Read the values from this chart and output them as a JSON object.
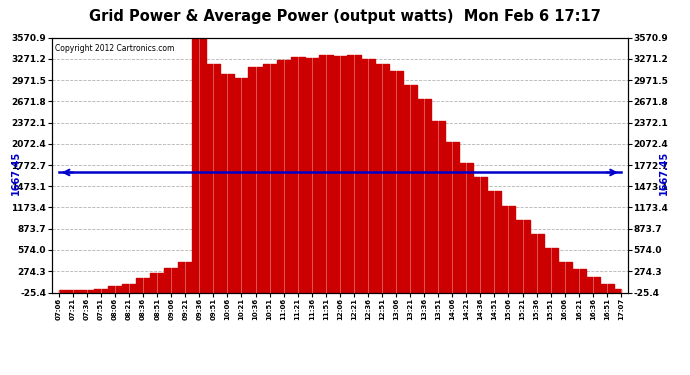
{
  "title": "Grid Power & Average Power (output watts)  Mon Feb 6 17:17",
  "copyright": "Copyright 2012 Cartronics.com",
  "avg_line_value": 1667.45,
  "y_ticks": [
    -25.4,
    274.3,
    574.0,
    873.7,
    1173.4,
    1473.1,
    1772.7,
    2072.4,
    2372.1,
    2671.8,
    2971.5,
    3271.2,
    3570.9
  ],
  "y_min": -25.4,
  "y_max": 3570.9,
  "background_color": "#ffffff",
  "plot_bg_color": "#ffffff",
  "bar_color": "#cc0000",
  "avg_line_color": "#0000cc",
  "grid_color": "#aaaaaa",
  "title_color": "#000000",
  "x_labels": [
    "07:06",
    "07:21",
    "07:36",
    "07:51",
    "08:06",
    "08:21",
    "08:36",
    "08:51",
    "09:06",
    "09:21",
    "09:36",
    "09:51",
    "10:06",
    "10:21",
    "10:36",
    "10:51",
    "11:06",
    "11:21",
    "11:36",
    "11:51",
    "12:06",
    "12:21",
    "12:36",
    "12:51",
    "13:06",
    "13:21",
    "13:36",
    "13:51",
    "14:06",
    "14:21",
    "14:36",
    "14:51",
    "15:06",
    "15:21",
    "15:36",
    "15:51",
    "16:06",
    "16:21",
    "16:36",
    "16:51",
    "17:07"
  ],
  "power_values": [
    5,
    8,
    12,
    30,
    60,
    100,
    180,
    250,
    320,
    400,
    3570,
    3200,
    3050,
    3000,
    3150,
    3200,
    3250,
    3300,
    3280,
    3320,
    3310,
    3330,
    3270,
    3200,
    3100,
    2900,
    2700,
    2400,
    2100,
    1800,
    1600,
    1400,
    1200,
    1000,
    800,
    600,
    400,
    300,
    200,
    100,
    20
  ]
}
